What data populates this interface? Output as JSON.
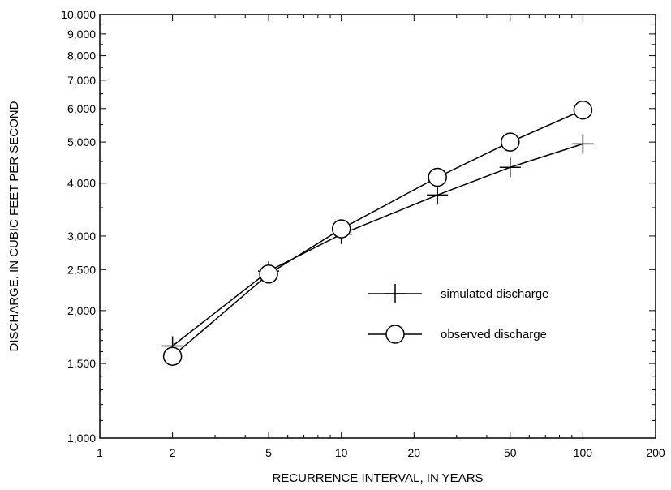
{
  "chart_data": {
    "type": "line",
    "xlabel": "RECURRENCE INTERVAL, IN YEARS",
    "ylabel": "DISCHARGE, IN CUBIC FEET PER SECOND",
    "x_scale": "log",
    "y_scale": "log",
    "xlim": [
      1,
      200
    ],
    "ylim": [
      1000,
      10000
    ],
    "x_ticks": [
      1,
      2,
      5,
      10,
      20,
      50,
      100,
      200
    ],
    "x_tick_labels": [
      "1",
      "2",
      "5",
      "10",
      "20",
      "50",
      "100",
      "200"
    ],
    "y_ticks": [
      1000,
      1500,
      2000,
      2500,
      3000,
      4000,
      5000,
      6000,
      7000,
      8000,
      9000,
      10000
    ],
    "y_tick_labels": [
      "1,000",
      "1,500",
      "2,000",
      "2,500",
      "3,000",
      "4,000",
      "5,000",
      "6,000",
      "7,000",
      "8,000",
      "9,000",
      "10,000"
    ],
    "legend_position": "center-right",
    "series": [
      {
        "name": "simulated discharge",
        "marker": "plus",
        "x": [
          2,
          5,
          10,
          25,
          50,
          100
        ],
        "y": [
          1650,
          2480,
          3030,
          3750,
          4360,
          4950
        ]
      },
      {
        "name": "observed discharge",
        "marker": "circle",
        "x": [
          2,
          5,
          10,
          25,
          50,
          100
        ],
        "y": [
          1560,
          2440,
          3120,
          4130,
          5000,
          5950
        ]
      }
    ]
  }
}
